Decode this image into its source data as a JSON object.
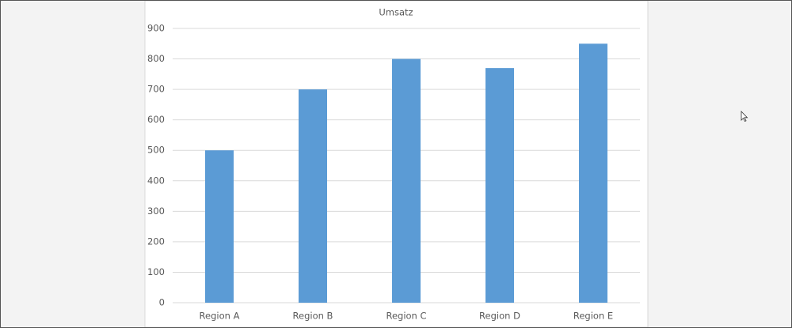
{
  "chart_data": {
    "type": "bar",
    "title": "Umsatz",
    "categories": [
      "Region A",
      "Region B",
      "Region C",
      "Region D",
      "Region E"
    ],
    "values": [
      500,
      700,
      800,
      770,
      850
    ],
    "color": "#5b9bd5",
    "ylim": [
      0,
      900
    ],
    "yticks": [
      0,
      100,
      200,
      300,
      400,
      500,
      600,
      700,
      800,
      900
    ],
    "grid": true
  }
}
